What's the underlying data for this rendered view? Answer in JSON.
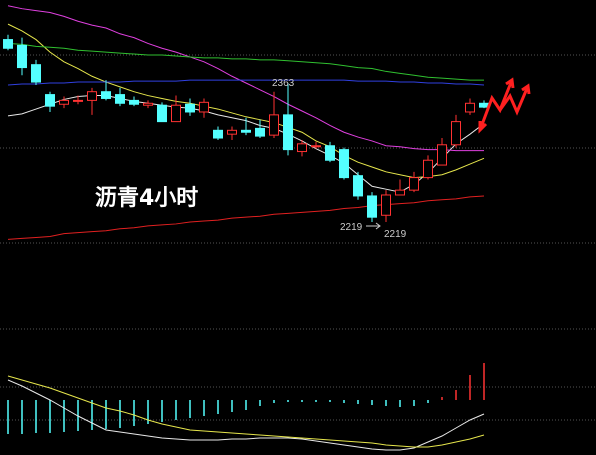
{
  "chart_data": [
    {
      "type": "candlestick",
      "title": "沥青4小时",
      "up_color": "#ff3232",
      "down_color": "#54ffff",
      "ylim": [
        2190,
        2449
      ],
      "categories": [
        null,
        null,
        null,
        null,
        null,
        null,
        null,
        null,
        null,
        null,
        null,
        null,
        null,
        null,
        null,
        null,
        null,
        null,
        null,
        null,
        null,
        null,
        null,
        null,
        null,
        null,
        null,
        null,
        null,
        null,
        null,
        null,
        null,
        null,
        null
      ],
      "open": [
        2408,
        2402,
        2382,
        2351,
        2341,
        2345,
        2345,
        2354,
        2351,
        2345,
        2340,
        2340,
        2323,
        2341,
        2333,
        2314,
        2310,
        2314,
        2316,
        2309,
        2330,
        2292,
        2298,
        2298,
        2294,
        2267,
        2246,
        2226,
        2247,
        2252,
        2265,
        2278,
        2299,
        2333,
        2342
      ],
      "high": [
        2413,
        2410,
        2387,
        2354,
        2349,
        2350,
        2358,
        2366,
        2358,
        2349,
        2345,
        2343,
        2350,
        2347,
        2347,
        2318,
        2318,
        2327,
        2325,
        2354,
        2363,
        2304,
        2302,
        2302,
        2296,
        2271,
        2250,
        2252,
        2263,
        2271,
        2288,
        2306,
        2330,
        2347,
        2345
      ],
      "low": [
        2397,
        2371,
        2361,
        2333,
        2337,
        2341,
        2330,
        2345,
        2339,
        2339,
        2337,
        2323,
        2325,
        2329,
        2327,
        2304,
        2304,
        2309,
        2306,
        2306,
        2288,
        2287,
        2295,
        2281,
        2263,
        2242,
        2219,
        2219,
        2247,
        2250,
        2263,
        2278,
        2296,
        2330,
        2337
      ],
      "close": [
        2399,
        2379,
        2364,
        2339,
        2345,
        2345,
        2354,
        2347,
        2342,
        2341,
        2342,
        2323,
        2340,
        2333,
        2343,
        2306,
        2314,
        2312,
        2308,
        2330,
        2294,
        2300,
        2298,
        2283,
        2265,
        2246,
        2224,
        2247,
        2252,
        2265,
        2283,
        2299,
        2323,
        2342,
        2338
      ],
      "series": [
        {
          "name": "MA5",
          "color": "#e8e8e8",
          "values": [
            2329,
            2331,
            2336,
            2341,
            2346,
            2349,
            2350,
            2350,
            2347,
            2344,
            2342,
            2340,
            2338,
            2337,
            2334,
            2330,
            2327,
            2324,
            2319,
            2316,
            2310,
            2303,
            2295,
            2288,
            2280,
            2268,
            2256,
            2253,
            2250,
            2258,
            2270,
            2285,
            2300,
            2310,
            2321
          ]
        },
        {
          "name": "MA10",
          "color": "#e6e64c",
          "values": [
            2424,
            2417,
            2408,
            2395,
            2385,
            2378,
            2370,
            2364,
            2359,
            2354,
            2350,
            2347,
            2344,
            2342,
            2339,
            2336,
            2332,
            2328,
            2325,
            2322,
            2317,
            2312,
            2303,
            2297,
            2288,
            2281,
            2276,
            2271,
            2268,
            2265,
            2266,
            2268,
            2273,
            2279,
            2285
          ]
        },
        {
          "name": "MA20",
          "color": "#e040e0",
          "values": [
            2443,
            2440,
            2438,
            2436,
            2432,
            2427,
            2423,
            2420,
            2414,
            2410,
            2404,
            2399,
            2395,
            2390,
            2385,
            2378,
            2370,
            2363,
            2356,
            2349,
            2341,
            2334,
            2327,
            2319,
            2312,
            2307,
            2303,
            2298,
            2297,
            2295,
            2294,
            2294,
            2293,
            2293,
            2293
          ]
        },
        {
          "name": "MA40",
          "color": "#30c030",
          "values": [
            2404,
            2403,
            2401,
            2400,
            2399,
            2397,
            2396,
            2395,
            2394,
            2393,
            2392,
            2392,
            2391,
            2390,
            2389,
            2389,
            2388,
            2388,
            2387,
            2387,
            2386,
            2385,
            2384,
            2383,
            2381,
            2379,
            2378,
            2375,
            2373,
            2371,
            2369,
            2368,
            2367,
            2366,
            2366
          ]
        },
        {
          "name": "MA60",
          "color": "#3040e0",
          "values": [
            2361,
            2362,
            2362,
            2363,
            2363,
            2364,
            2364,
            2364,
            2364,
            2365,
            2365,
            2365,
            2365,
            2366,
            2366,
            2366,
            2366,
            2366,
            2366,
            2366,
            2366,
            2366,
            2366,
            2366,
            2366,
            2365,
            2365,
            2365,
            2364,
            2364,
            2363,
            2363,
            2362,
            2362,
            2361
          ]
        },
        {
          "name": "MA120",
          "color": "#e02020",
          "values": [
            2201,
            2202,
            2203,
            2204,
            2207,
            2208,
            2209,
            2210,
            2212,
            2213,
            2215,
            2216,
            2217,
            2219,
            2220,
            2221,
            2223,
            2224,
            2225,
            2227,
            2228,
            2229,
            2230,
            2231,
            2233,
            2234,
            2236,
            2237,
            2238,
            2239,
            2241,
            2242,
            2243,
            2245,
            2246
          ]
        }
      ],
      "annotations": [
        "2363",
        "2219",
        "2219"
      ]
    },
    {
      "type": "macd",
      "ylim": [
        -55,
        70
      ],
      "up_color": "#ff3232",
      "down_color": "#54ffff",
      "values": [
        -34,
        -34,
        -33,
        -33,
        -32,
        -31,
        -30,
        -29,
        -28,
        -26,
        -24,
        -22,
        -20,
        -18,
        -16,
        -14,
        -12,
        -10,
        -6,
        -3,
        -2,
        -2,
        -2,
        -2,
        -3,
        -4,
        -5,
        -6,
        -7,
        -6,
        -3,
        3,
        10,
        25,
        37
      ],
      "series": [
        {
          "name": "DIF",
          "color": "#e8e8e8",
          "values": [
            20,
            14,
            7,
            0,
            -8,
            -16,
            -23,
            -30,
            -32,
            -34,
            -36,
            -38,
            -39,
            -40,
            -40,
            -40,
            -39,
            -39,
            -38,
            -38,
            -38,
            -39,
            -41,
            -43,
            -45,
            -47,
            -49,
            -50,
            -50,
            -48,
            -42,
            -36,
            -28,
            -20,
            -14
          ]
        },
        {
          "name": "DEA",
          "color": "#e6e64c",
          "values": [
            24,
            20,
            16,
            12,
            7,
            2,
            -3,
            -8,
            -11,
            -15,
            -20,
            -24,
            -27,
            -30,
            -31,
            -32,
            -33,
            -34,
            -35,
            -36,
            -37,
            -38,
            -39,
            -40,
            -41,
            -42,
            -43,
            -45,
            -46,
            -47,
            -47,
            -45,
            -42,
            -39,
            -35
          ]
        }
      ]
    }
  ]
}
